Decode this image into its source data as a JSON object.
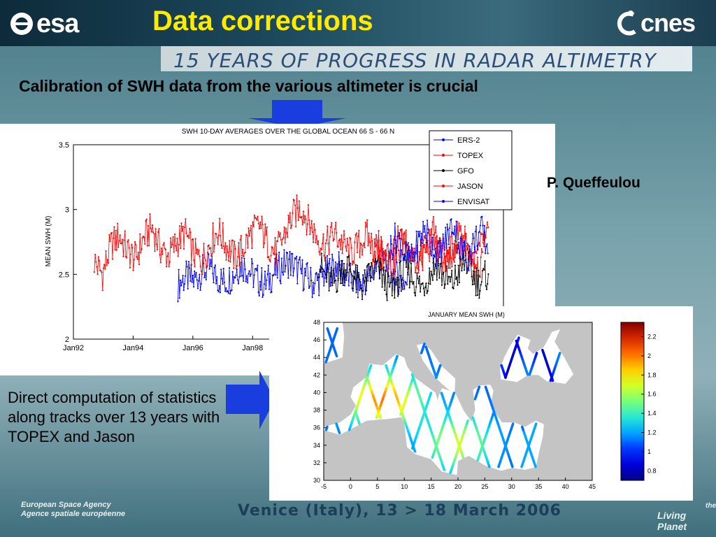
{
  "header": {
    "esa_logo": "esa",
    "title": "Data corrections",
    "cnes_logo": "cnes",
    "banner": "15 YEARS OF PROGRESS IN RADAR ALTIMETRY"
  },
  "subtitle": "Calibration of SWH data from the various altimeter is crucial",
  "author": "P. Queffeulou",
  "note": "Direct computation of statistics along tracks over 13 years with TOPEX and Jason",
  "footer": {
    "agency_line1": "European Space Agency",
    "agency_line2": "Agence spatiale européenne",
    "venue": "Venice (Italy), 13 > 18 March 2006",
    "tagline_1": "the",
    "tagline_2": "Living Planet"
  },
  "icons": {
    "down_arrow_color": "#1a3de0",
    "right_arrow_color": "#1a3de0"
  },
  "chart_data": [
    {
      "type": "line",
      "title": "SWH  10-DAY AVERAGES OVER THE GLOBAL OCEAN  66 S - 66 N",
      "ylabel": "MEAN  SWH  (M)",
      "xlabel": "",
      "x_ticks": [
        "Jan92",
        "Jan94",
        "Jan96",
        "Jan98"
      ],
      "y_ticks": [
        "2",
        "2.5",
        "3",
        "3.5"
      ],
      "ylim": [
        2,
        3.5
      ],
      "legend": "top-right",
      "series": [
        {
          "name": "ERS-2",
          "color": "#0000ff",
          "start": 1995.5,
          "end": 2003.2,
          "values": [
            2.42,
            2.48,
            2.45,
            2.52,
            2.55,
            2.47,
            2.44,
            2.5,
            2.58,
            2.53,
            2.46,
            2.42,
            2.5,
            2.56,
            2.6,
            2.54,
            2.49,
            2.43,
            2.47,
            2.53,
            2.57,
            2.5,
            2.45,
            2.41,
            2.48,
            2.55,
            2.59,
            2.52,
            2.46,
            2.43
          ]
        },
        {
          "name": "TOPEX",
          "color": "#ff0000",
          "start": 1992.7,
          "end": 2005.7,
          "values": [
            2.6,
            2.5,
            2.72,
            2.8,
            2.68,
            2.62,
            2.78,
            2.86,
            2.7,
            2.64,
            2.75,
            2.82,
            2.66,
            2.6,
            2.74,
            2.84,
            2.72,
            2.63,
            2.7,
            2.82,
            2.88,
            2.74,
            2.66,
            2.8,
            2.95,
            3.02,
            2.9,
            2.78,
            2.72,
            2.82,
            2.74,
            2.66,
            2.72,
            2.8,
            2.68,
            2.62,
            2.7,
            2.76,
            2.66,
            2.6,
            2.68,
            2.74,
            2.64,
            2.58,
            2.66,
            2.72,
            2.62,
            2.56
          ]
        },
        {
          "name": "GFO",
          "color": "#000000",
          "start": 2000.2,
          "end": 2005.9,
          "values": [
            2.6,
            2.48,
            2.42,
            2.52,
            2.58,
            2.46,
            2.4,
            2.5,
            2.56,
            2.44,
            2.38,
            2.48,
            2.55,
            2.45,
            2.4,
            2.5,
            2.58,
            2.47,
            2.42,
            2.52,
            2.6,
            2.48,
            2.43,
            2.52
          ]
        },
        {
          "name": "JASON",
          "color": "#ff0000",
          "start": 2002.0,
          "end": 2005.9,
          "values": [
            2.62,
            2.75,
            2.68,
            2.58,
            2.7,
            2.8,
            2.66,
            2.6,
            2.72,
            2.84,
            2.7,
            2.62,
            2.74,
            2.86,
            2.68,
            2.6,
            2.72,
            2.8
          ]
        },
        {
          "name": "ENVISAT",
          "color": "#0000ff",
          "start": 2002.6,
          "end": 2005.9,
          "values": [
            2.7,
            2.8,
            2.66,
            2.6,
            2.74,
            2.86,
            2.72,
            2.64,
            2.78,
            2.9,
            2.7,
            2.62,
            2.76,
            2.84,
            2.68
          ]
        }
      ]
    },
    {
      "type": "heatmap",
      "title": "JANUARY MEAN SWH  (M)",
      "x_ticks": [
        "-5",
        "0",
        "5",
        "10",
        "15",
        "20",
        "25",
        "30",
        "35",
        "40",
        "45"
      ],
      "y_ticks": [
        "30",
        "32",
        "34",
        "36",
        "38",
        "40",
        "42",
        "44",
        "46",
        "48"
      ],
      "xlim": [
        -5,
        45
      ],
      "ylim": [
        30,
        48
      ],
      "colorbar_ticks": [
        "0.8",
        "1",
        "1.2",
        "1.4",
        "1.6",
        "1.8",
        "2",
        "2.2"
      ],
      "colorbar_range": [
        0.7,
        2.35
      ]
    }
  ]
}
